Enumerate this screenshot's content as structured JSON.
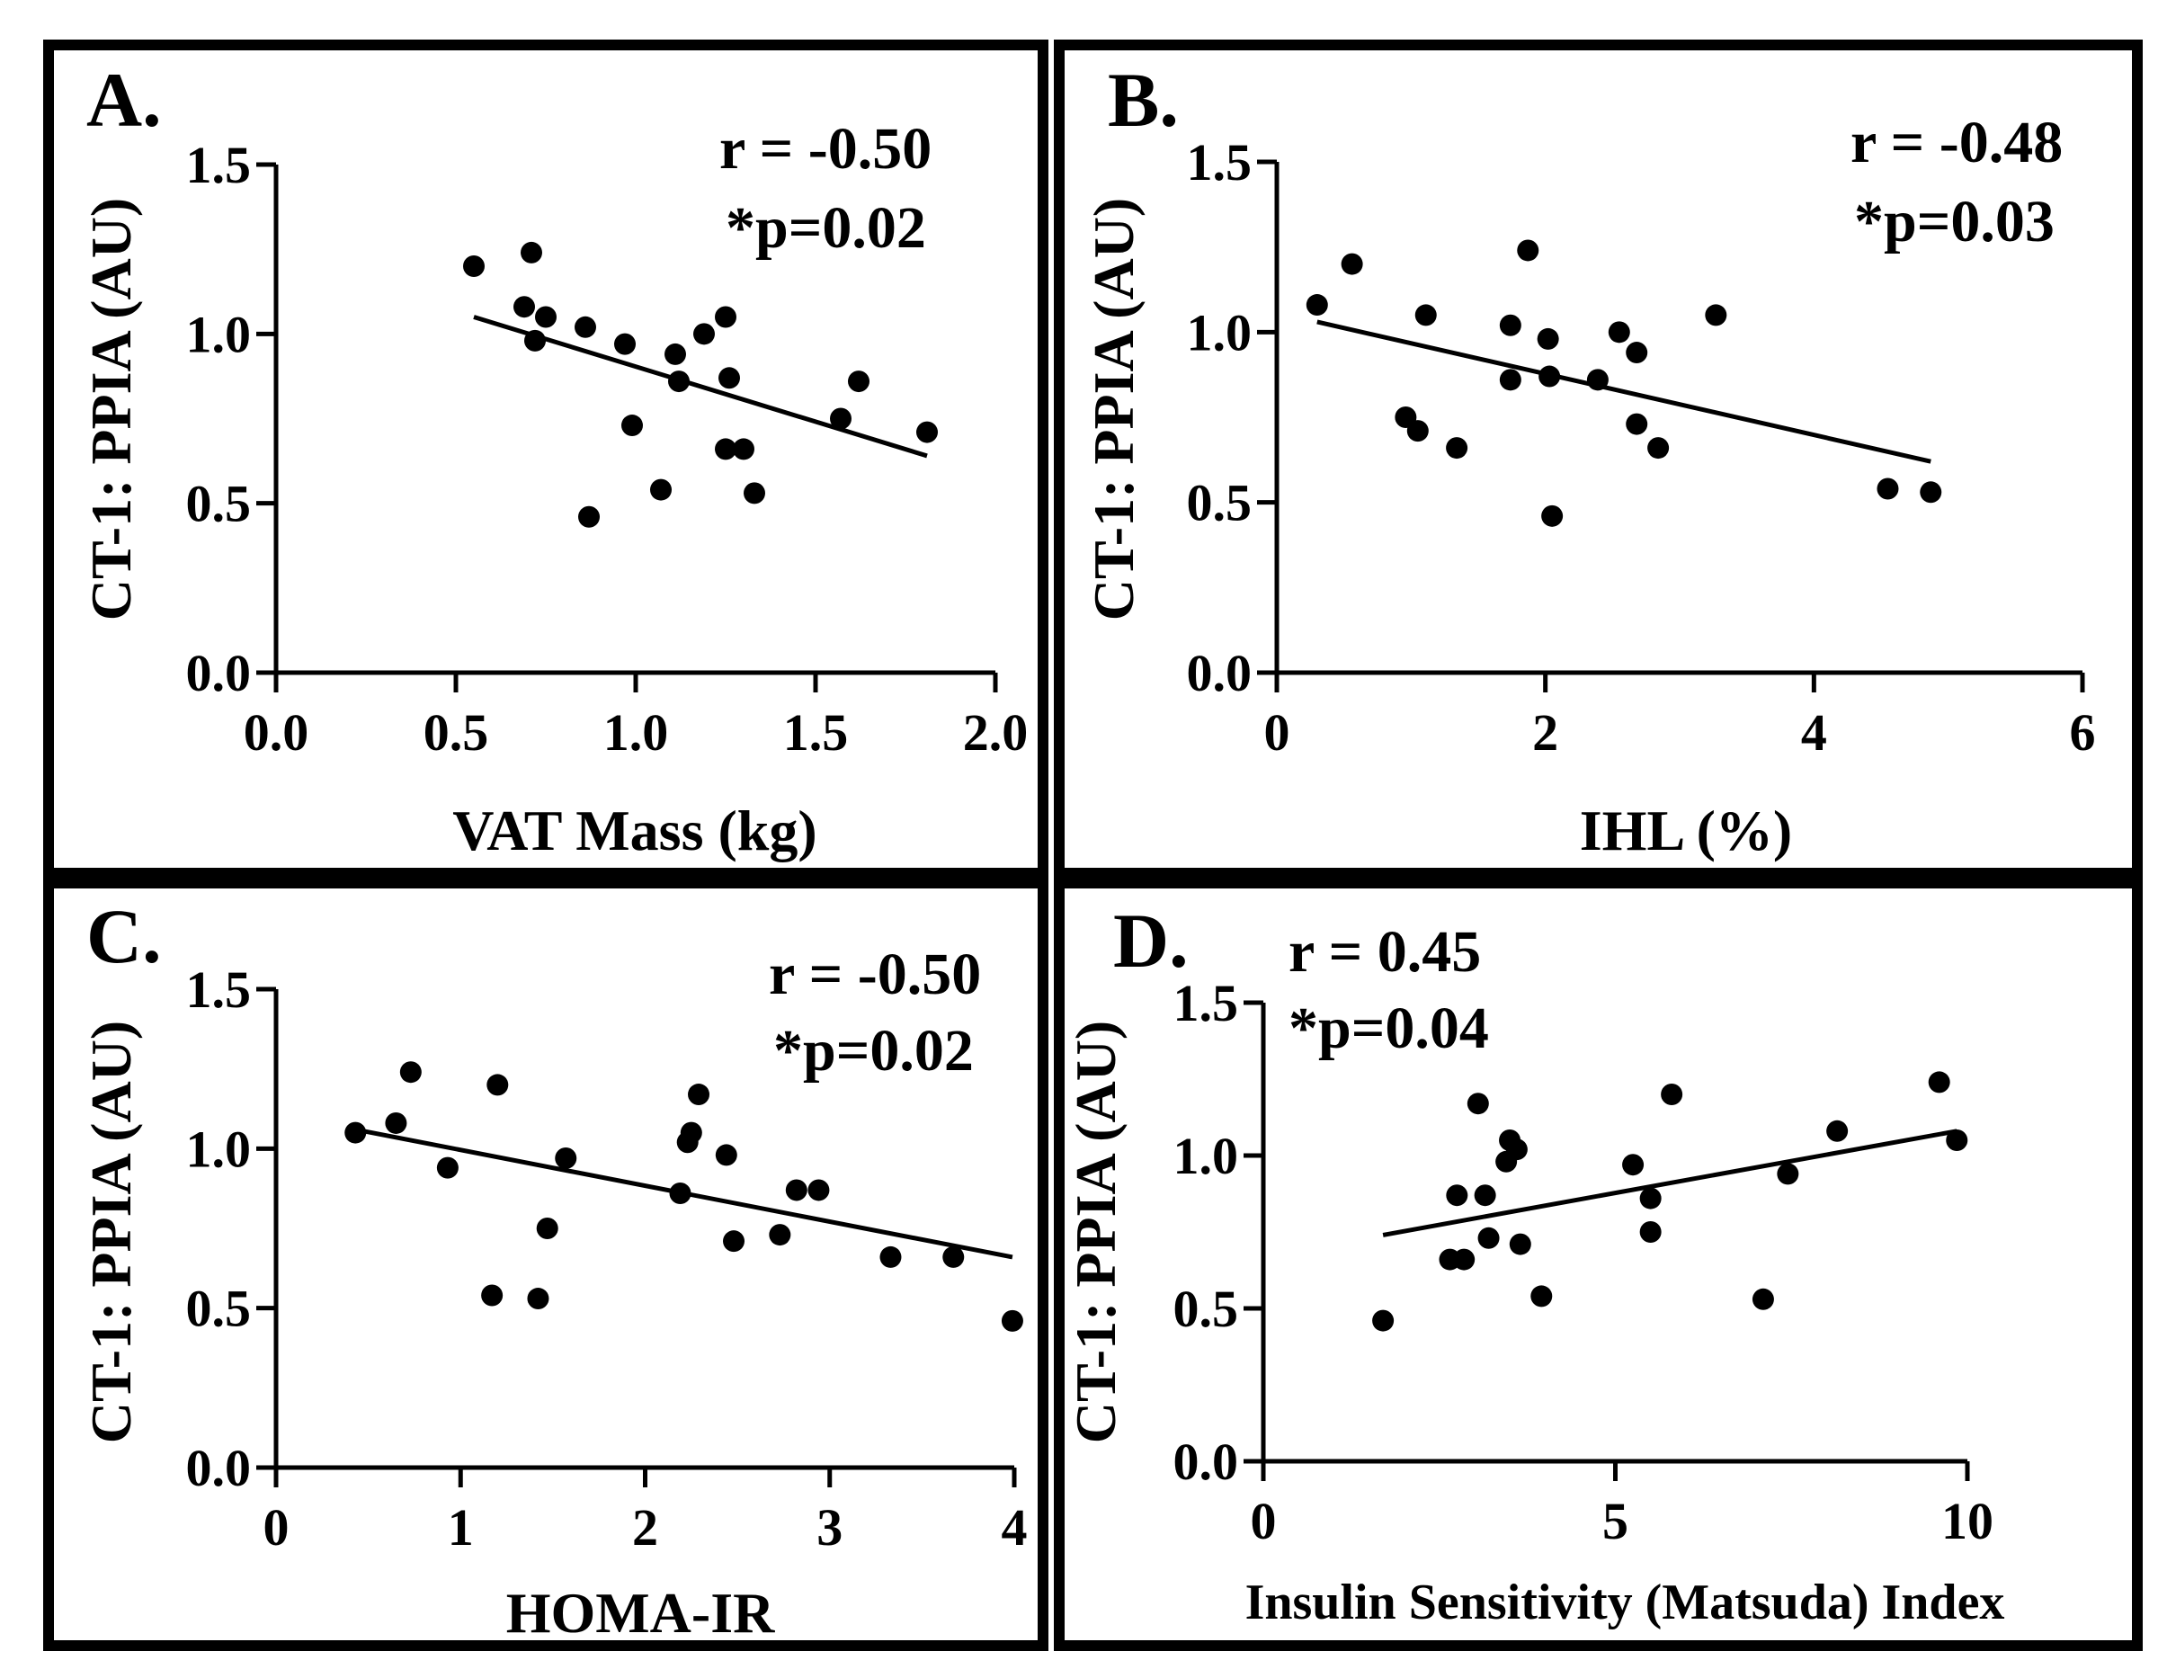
{
  "chart_data": [
    {
      "type": "scatter",
      "panel_label": "A.",
      "xlabel": "VAT Mass (kg)",
      "ylabel": "CT-1: PPIA (AU)",
      "xlim": [
        0.0,
        2.0
      ],
      "ylim": [
        0.0,
        1.5
      ],
      "xticks": [
        "0.0",
        "0.5",
        "1.0",
        "1.5",
        "2.0"
      ],
      "xtick_values": [
        0.0,
        0.5,
        1.0,
        1.5,
        2.0
      ],
      "yticks": [
        "0.0",
        "0.5",
        "1.0",
        "1.5"
      ],
      "ytick_values": [
        0.0,
        0.5,
        1.0,
        1.5
      ],
      "r_text": "r = -0.50",
      "p_text": "*p=0.02",
      "points": [
        [
          0.55,
          1.2
        ],
        [
          0.69,
          1.08
        ],
        [
          0.71,
          1.24
        ],
        [
          0.72,
          0.98
        ],
        [
          0.75,
          1.05
        ],
        [
          0.86,
          1.02
        ],
        [
          0.87,
          0.46
        ],
        [
          0.97,
          0.97
        ],
        [
          0.99,
          0.73
        ],
        [
          1.07,
          0.54
        ],
        [
          1.11,
          0.94
        ],
        [
          1.12,
          0.86
        ],
        [
          1.19,
          1.0
        ],
        [
          1.25,
          0.66
        ],
        [
          1.25,
          1.05
        ],
        [
          1.26,
          0.87
        ],
        [
          1.3,
          0.66
        ],
        [
          1.33,
          0.53
        ],
        [
          1.57,
          0.75
        ],
        [
          1.62,
          0.86
        ],
        [
          1.81,
          0.71
        ]
      ],
      "fit": [
        [
          0.55,
          1.05
        ],
        [
          1.81,
          0.64
        ]
      ]
    },
    {
      "type": "scatter",
      "panel_label": "B.",
      "xlabel": "IHL (%)",
      "ylabel": "CT-1: PPIA (AU)",
      "xlim": [
        0,
        6
      ],
      "ylim": [
        0.0,
        1.5
      ],
      "xticks": [
        "0",
        "2",
        "4",
        "6"
      ],
      "xtick_values": [
        0,
        2,
        4,
        6
      ],
      "yticks": [
        "0.0",
        "0.5",
        "1.0",
        "1.5"
      ],
      "ytick_values": [
        0.0,
        0.5,
        1.0,
        1.5
      ],
      "r_text": "r = -0.48",
      "p_text": "*p=0.03",
      "points": [
        [
          0.3,
          1.08
        ],
        [
          0.56,
          1.2
        ],
        [
          0.96,
          0.75
        ],
        [
          1.05,
          0.71
        ],
        [
          1.11,
          1.05
        ],
        [
          1.34,
          0.66
        ],
        [
          1.74,
          1.02
        ],
        [
          1.74,
          0.86
        ],
        [
          1.87,
          1.24
        ],
        [
          2.02,
          0.98
        ],
        [
          2.03,
          0.87
        ],
        [
          2.05,
          0.46
        ],
        [
          2.39,
          0.86
        ],
        [
          2.55,
          1.0
        ],
        [
          2.68,
          0.73
        ],
        [
          2.68,
          0.94
        ],
        [
          2.84,
          0.66
        ],
        [
          3.27,
          1.05
        ],
        [
          4.55,
          0.54
        ],
        [
          4.87,
          0.53
        ]
      ],
      "fit": [
        [
          0.3,
          1.03
        ],
        [
          4.87,
          0.62
        ]
      ]
    },
    {
      "type": "scatter",
      "panel_label": "C.",
      "xlabel": "HOMA-IR",
      "ylabel": "CT-1: PPIA (AU)",
      "xlim": [
        0,
        4
      ],
      "ylim": [
        0.0,
        1.5
      ],
      "xticks": [
        "0",
        "1",
        "2",
        "3",
        "4"
      ],
      "xtick_values": [
        0,
        1,
        2,
        3,
        4
      ],
      "yticks": [
        "0.0",
        "0.5",
        "1.0",
        "1.5"
      ],
      "ytick_values": [
        0.0,
        0.5,
        1.0,
        1.5
      ],
      "r_text": "r = -0.50",
      "p_text": "*p=0.02",
      "points": [
        [
          0.43,
          1.05
        ],
        [
          0.65,
          1.08
        ],
        [
          0.73,
          1.24
        ],
        [
          0.93,
          0.94
        ],
        [
          1.17,
          0.54
        ],
        [
          1.2,
          1.2
        ],
        [
          1.42,
          0.53
        ],
        [
          1.47,
          0.75
        ],
        [
          1.57,
          0.97
        ],
        [
          2.19,
          0.86
        ],
        [
          2.23,
          1.02
        ],
        [
          2.25,
          1.05
        ],
        [
          2.29,
          1.17
        ],
        [
          2.44,
          0.98
        ],
        [
          2.48,
          0.71
        ],
        [
          2.73,
          0.73
        ],
        [
          2.82,
          0.87
        ],
        [
          2.94,
          0.87
        ],
        [
          3.33,
          0.66
        ],
        [
          3.67,
          0.66
        ],
        [
          3.99,
          0.46
        ]
      ],
      "fit": [
        [
          0.43,
          1.06
        ],
        [
          3.99,
          0.66
        ]
      ]
    },
    {
      "type": "scatter",
      "panel_label": "D.",
      "xlabel": "Insulin Sensitivity (Matsuda) Index",
      "ylabel": "CT-1: PPIA (AU)",
      "xlim": [
        0,
        10
      ],
      "ylim": [
        0.0,
        1.5
      ],
      "xticks": [
        "0",
        "5",
        "10"
      ],
      "xtick_values": [
        0,
        5,
        10
      ],
      "yticks": [
        "0.0",
        "0.5",
        "1.0",
        "1.5"
      ],
      "ytick_values": [
        0.0,
        0.5,
        1.0,
        1.5
      ],
      "r_text": "r = 0.45",
      "p_text": "*p=0.04",
      "points": [
        [
          1.7,
          0.46
        ],
        [
          2.65,
          0.66
        ],
        [
          2.75,
          0.87
        ],
        [
          2.85,
          0.66
        ],
        [
          3.05,
          1.17
        ],
        [
          3.15,
          0.87
        ],
        [
          3.2,
          0.73
        ],
        [
          3.45,
          0.98
        ],
        [
          3.5,
          1.05
        ],
        [
          3.6,
          1.02
        ],
        [
          3.65,
          0.71
        ],
        [
          3.95,
          0.54
        ],
        [
          5.25,
          0.97
        ],
        [
          5.5,
          0.86
        ],
        [
          5.5,
          0.75
        ],
        [
          5.8,
          1.2
        ],
        [
          7.1,
          0.53
        ],
        [
          7.45,
          0.94
        ],
        [
          8.15,
          1.08
        ],
        [
          9.6,
          1.24
        ],
        [
          9.85,
          1.05
        ]
      ],
      "fit": [
        [
          1.7,
          0.74
        ],
        [
          9.85,
          1.08
        ]
      ]
    }
  ]
}
